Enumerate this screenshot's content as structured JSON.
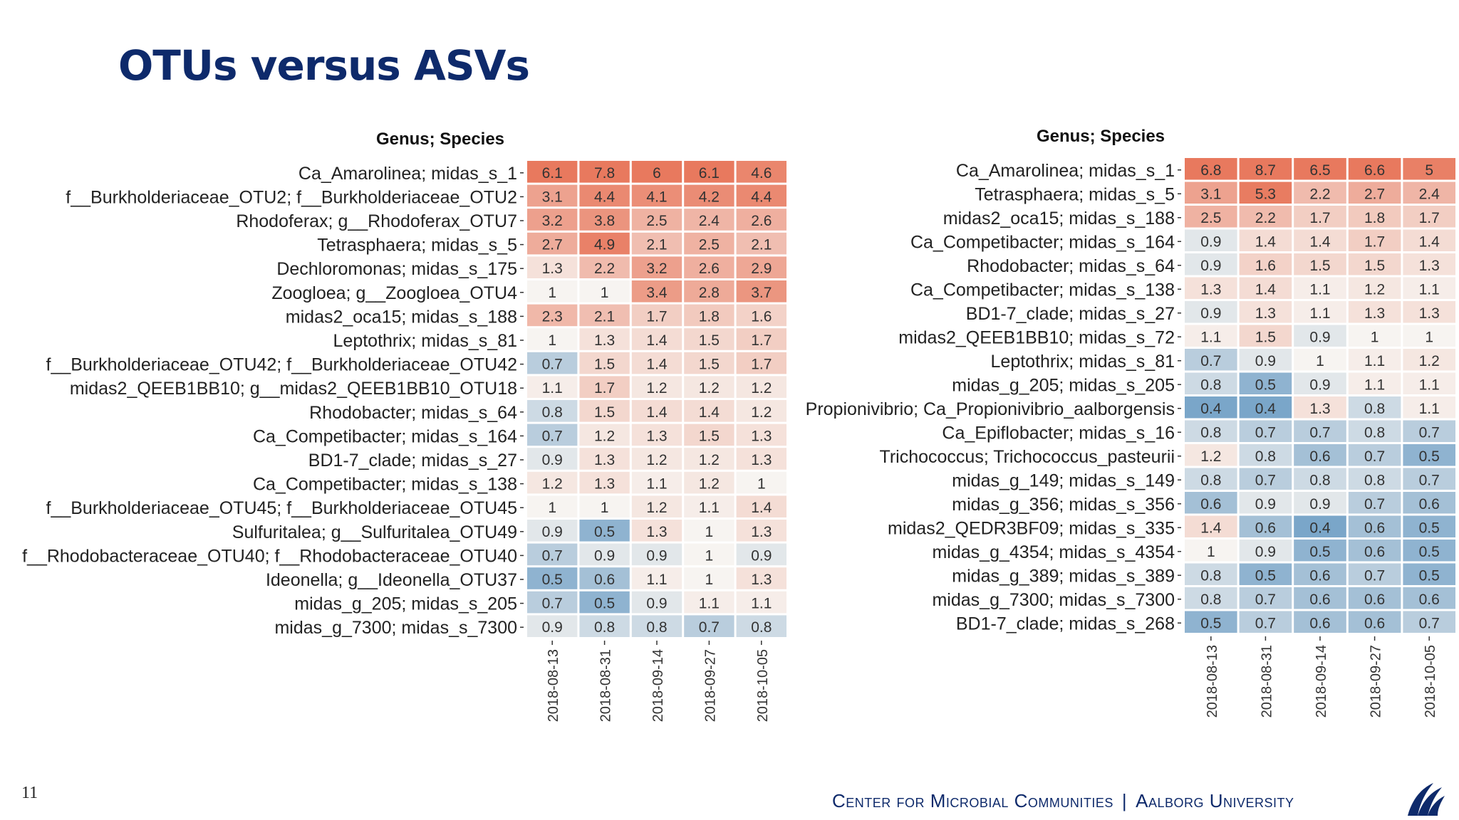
{
  "page": {
    "title": "OTUs versus ASVs",
    "page_number": "11",
    "footer_left": "Center for Microbial Communities",
    "footer_sep": "|",
    "footer_right": "Aalborg University",
    "logo_icon": "aalborg-university-logo",
    "colors": {
      "title": "#0e2a6b",
      "high": "#e8795e",
      "low": "#7aa6c9",
      "mid": "#f7f4f1"
    }
  },
  "chart_data": [
    {
      "type": "heatmap",
      "title": "Genus; Species",
      "x": [
        "2018-08-13",
        "2018-08-31",
        "2018-09-14",
        "2018-09-27",
        "2018-10-05"
      ],
      "rows": [
        "Ca_Amarolinea; midas_s_1",
        "f__Burkholderiaceae_OTU2; f__Burkholderiaceae_OTU2",
        "Rhodoferax; g__Rhodoferax_OTU7",
        "Tetrasphaera; midas_s_5",
        "Dechloromonas; midas_s_175",
        "Zoogloea; g__Zoogloea_OTU4",
        "midas2_oca15; midas_s_188",
        "Leptothrix; midas_s_81",
        "f__Burkholderiaceae_OTU42; f__Burkholderiaceae_OTU42",
        "midas2_QEEB1BB10; g__midas2_QEEB1BB10_OTU18",
        "Rhodobacter; midas_s_64",
        "Ca_Competibacter; midas_s_164",
        "BD1-7_clade; midas_s_27",
        "Ca_Competibacter; midas_s_138",
        "f__Burkholderiaceae_OTU45; f__Burkholderiaceae_OTU45",
        "Sulfuritalea; g__Sulfuritalea_OTU49",
        "f__Rhodobacteraceae_OTU40; f__Rhodobacteraceae_OTU40",
        "Ideonella; g__Ideonella_OTU37",
        "midas_g_205; midas_s_205",
        "midas_g_7300; midas_s_7300"
      ],
      "values": [
        [
          "6.1",
          "7.8",
          "6",
          "6.1",
          "4.6"
        ],
        [
          "3.1",
          "4.4",
          "4.1",
          "4.2",
          "4.4"
        ],
        [
          "3.2",
          "3.8",
          "2.5",
          "2.4",
          "2.6"
        ],
        [
          "2.7",
          "4.9",
          "2.1",
          "2.5",
          "2.1"
        ],
        [
          "1.3",
          "2.2",
          "3.2",
          "2.6",
          "2.9"
        ],
        [
          "1",
          "1",
          "3.4",
          "2.8",
          "3.7"
        ],
        [
          "2.3",
          "2.1",
          "1.7",
          "1.8",
          "1.6"
        ],
        [
          "1",
          "1.3",
          "1.4",
          "1.5",
          "1.7"
        ],
        [
          "0.7",
          "1.5",
          "1.4",
          "1.5",
          "1.7"
        ],
        [
          "1.1",
          "1.7",
          "1.2",
          "1.2",
          "1.2"
        ],
        [
          "0.8",
          "1.5",
          "1.4",
          "1.4",
          "1.2"
        ],
        [
          "0.7",
          "1.2",
          "1.3",
          "1.5",
          "1.3"
        ],
        [
          "0.9",
          "1.3",
          "1.2",
          "1.2",
          "1.3"
        ],
        [
          "1.2",
          "1.3",
          "1.1",
          "1.2",
          "1"
        ],
        [
          "1",
          "1",
          "1.2",
          "1.1",
          "1.4"
        ],
        [
          "0.9",
          "0.5",
          "1.3",
          "1",
          "1.3"
        ],
        [
          "0.7",
          "0.9",
          "0.9",
          "1",
          "0.9"
        ],
        [
          "0.5",
          "0.6",
          "1.1",
          "1",
          "1.3"
        ],
        [
          "0.7",
          "0.5",
          "0.9",
          "1.1",
          "1.1"
        ],
        [
          "0.9",
          "0.8",
          "0.8",
          "0.7",
          "0.8"
        ]
      ]
    },
    {
      "type": "heatmap",
      "title": "Genus; Species",
      "x": [
        "2018-08-13",
        "2018-08-31",
        "2018-09-14",
        "2018-09-27",
        "2018-10-05"
      ],
      "rows": [
        "Ca_Amarolinea; midas_s_1",
        "Tetrasphaera; midas_s_5",
        "midas2_oca15; midas_s_188",
        "Ca_Competibacter; midas_s_164",
        "Rhodobacter; midas_s_64",
        "Ca_Competibacter; midas_s_138",
        "BD1-7_clade; midas_s_27",
        "midas2_QEEB1BB10; midas_s_72",
        "Leptothrix; midas_s_81",
        "midas_g_205; midas_s_205",
        "Propionivibrio; Ca_Propionivibrio_aalborgensis",
        "Ca_Epiflobacter; midas_s_16",
        "Trichococcus; Trichococcus_pasteurii",
        "midas_g_149; midas_s_149",
        "midas_g_356; midas_s_356",
        "midas2_QEDR3BF09; midas_s_335",
        "midas_g_4354; midas_s_4354",
        "midas_g_389; midas_s_389",
        "midas_g_7300; midas_s_7300",
        "BD1-7_clade; midas_s_268"
      ],
      "values": [
        [
          "6.8",
          "8.7",
          "6.5",
          "6.6",
          "5"
        ],
        [
          "3.1",
          "5.3",
          "2.2",
          "2.7",
          "2.4"
        ],
        [
          "2.5",
          "2.2",
          "1.7",
          "1.8",
          "1.7"
        ],
        [
          "0.9",
          "1.4",
          "1.4",
          "1.7",
          "1.4"
        ],
        [
          "0.9",
          "1.6",
          "1.5",
          "1.5",
          "1.3"
        ],
        [
          "1.3",
          "1.4",
          "1.1",
          "1.2",
          "1.1"
        ],
        [
          "0.9",
          "1.3",
          "1.1",
          "1.3",
          "1.3"
        ],
        [
          "1.1",
          "1.5",
          "0.9",
          "1",
          "1"
        ],
        [
          "0.7",
          "0.9",
          "1",
          "1.1",
          "1.2"
        ],
        [
          "0.8",
          "0.5",
          "0.9",
          "1.1",
          "1.1"
        ],
        [
          "0.4",
          "0.4",
          "1.3",
          "0.8",
          "1.1"
        ],
        [
          "0.8",
          "0.7",
          "0.7",
          "0.8",
          "0.7"
        ],
        [
          "1.2",
          "0.8",
          "0.6",
          "0.7",
          "0.5"
        ],
        [
          "0.8",
          "0.7",
          "0.8",
          "0.8",
          "0.7"
        ],
        [
          "0.6",
          "0.9",
          "0.9",
          "0.7",
          "0.6"
        ],
        [
          "1.4",
          "0.6",
          "0.4",
          "0.6",
          "0.5"
        ],
        [
          "1",
          "0.9",
          "0.5",
          "0.6",
          "0.5"
        ],
        [
          "0.8",
          "0.5",
          "0.6",
          "0.7",
          "0.5"
        ],
        [
          "0.8",
          "0.7",
          "0.6",
          "0.6",
          "0.6"
        ],
        [
          "0.5",
          "0.7",
          "0.6",
          "0.6",
          "0.7"
        ]
      ]
    }
  ]
}
